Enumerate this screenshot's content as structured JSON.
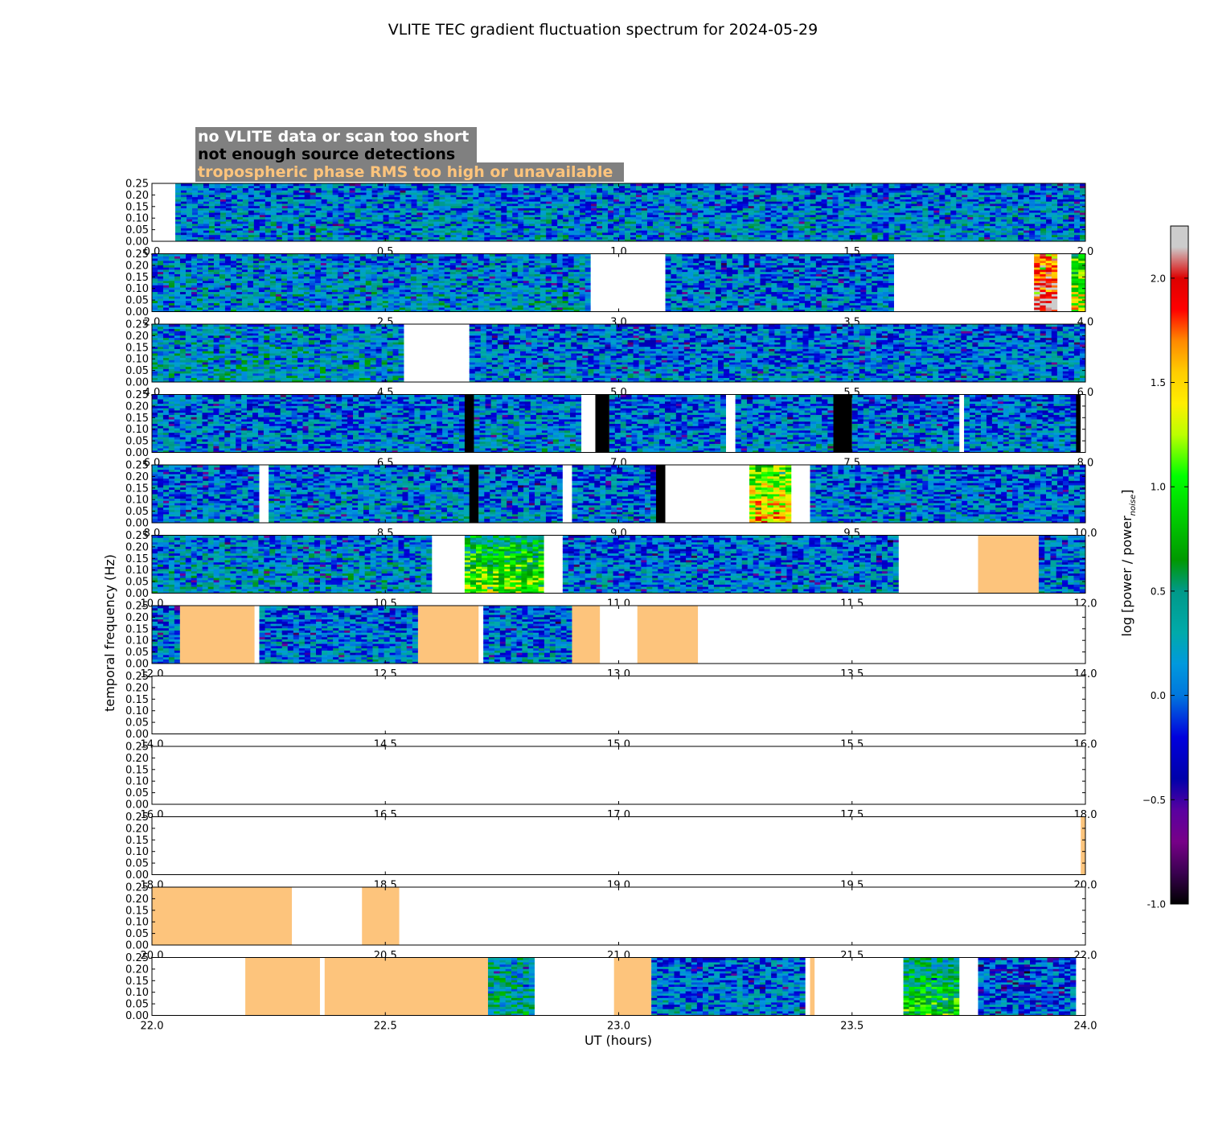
{
  "chart_data": {
    "type": "heatmap",
    "title": "VLITE TEC gradient fluctuation spectrum for 2024-05-29",
    "xlabel": "UT (hours)",
    "ylabel": "temporal frequency (Hz)",
    "ylim": [
      0,
      0.25
    ],
    "y_ticks": [
      "0.00",
      "0.05",
      "0.10",
      "0.15",
      "0.20",
      "0.25"
    ],
    "legend": [
      {
        "text": "no VLITE data or scan too short",
        "color": "#ffffff"
      },
      {
        "text": "not enough source detections",
        "color": "#000000"
      },
      {
        "text": "tropospheric phase RMS too high or unavailable",
        "color": "#fdc47c"
      }
    ],
    "colorbar": {
      "label": "log [power / power",
      "label_sub": "noise",
      "label_end": "]",
      "range": [
        -1.0,
        2.25
      ],
      "ticks": [
        "-1.0",
        "−0.5",
        "0.0",
        "0.5",
        "1.0",
        "1.5",
        "2.0"
      ],
      "tick_values": [
        -1.0,
        -0.5,
        0.0,
        0.5,
        1.0,
        1.5,
        2.0
      ]
    },
    "flag_colors": {
      "nodata": "#ffffff",
      "nodet": "#000000",
      "tropo": "#fdc47c"
    },
    "rows": [
      {
        "xmin": 0,
        "xmax": 2,
        "ticks": [
          "0.0",
          "0.5",
          "1.0",
          "1.5",
          "2.0"
        ],
        "segments": [
          {
            "t0": 0.0,
            "t1": 0.05,
            "kind": "nodata"
          },
          {
            "t0": 0.05,
            "t1": 2.0,
            "kind": "data",
            "level": 0.05
          }
        ]
      },
      {
        "xmin": 2,
        "xmax": 4,
        "ticks": [
          "2.0",
          "2.5",
          "3.0",
          "3.5",
          "4.0"
        ],
        "segments": [
          {
            "t0": 2.0,
            "t1": 2.94,
            "kind": "data",
            "level": 0.1
          },
          {
            "t0": 2.94,
            "t1": 3.1,
            "kind": "nodata"
          },
          {
            "t0": 3.1,
            "t1": 3.59,
            "kind": "data",
            "level": 0.0
          },
          {
            "t0": 3.59,
            "t1": 3.89,
            "kind": "nodata"
          },
          {
            "t0": 3.89,
            "t1": 3.94,
            "kind": "data",
            "level": 1.6
          },
          {
            "t0": 3.94,
            "t1": 3.97,
            "kind": "nodata"
          },
          {
            "t0": 3.97,
            "t1": 4.0,
            "kind": "data",
            "level": 0.8
          }
        ]
      },
      {
        "xmin": 4,
        "xmax": 6,
        "ticks": [
          "4.0",
          "4.5",
          "5.0",
          "5.5",
          "6.0"
        ],
        "segments": [
          {
            "t0": 4.0,
            "t1": 4.54,
            "kind": "data",
            "level": 0.15
          },
          {
            "t0": 4.54,
            "t1": 4.68,
            "kind": "nodata"
          },
          {
            "t0": 4.68,
            "t1": 6.0,
            "kind": "data",
            "level": 0.0
          }
        ]
      },
      {
        "xmin": 6,
        "xmax": 8,
        "ticks": [
          "6.0",
          "6.5",
          "7.0",
          "7.5",
          "8.0"
        ],
        "segments": [
          {
            "t0": 6.0,
            "t1": 6.67,
            "kind": "data",
            "level": 0.0
          },
          {
            "t0": 6.67,
            "t1": 6.69,
            "kind": "nodet"
          },
          {
            "t0": 6.69,
            "t1": 6.92,
            "kind": "data",
            "level": 0.05
          },
          {
            "t0": 6.92,
            "t1": 6.95,
            "kind": "nodata"
          },
          {
            "t0": 6.95,
            "t1": 6.98,
            "kind": "nodet"
          },
          {
            "t0": 6.98,
            "t1": 7.23,
            "kind": "data",
            "level": 0.0
          },
          {
            "t0": 7.23,
            "t1": 7.25,
            "kind": "nodata"
          },
          {
            "t0": 7.25,
            "t1": 7.46,
            "kind": "data",
            "level": 0.0
          },
          {
            "t0": 7.46,
            "t1": 7.5,
            "kind": "nodet"
          },
          {
            "t0": 7.5,
            "t1": 7.73,
            "kind": "data",
            "level": 0.0
          },
          {
            "t0": 7.73,
            "t1": 7.74,
            "kind": "nodata"
          },
          {
            "t0": 7.74,
            "t1": 7.98,
            "kind": "data",
            "level": 0.0
          },
          {
            "t0": 7.98,
            "t1": 7.99,
            "kind": "nodet"
          },
          {
            "t0": 7.99,
            "t1": 8.0,
            "kind": "nodata"
          }
        ]
      },
      {
        "xmin": 8,
        "xmax": 10,
        "ticks": [
          "8.0",
          "8.5",
          "9.0",
          "9.5",
          "10.0"
        ],
        "segments": [
          {
            "t0": 8.0,
            "t1": 8.23,
            "kind": "data",
            "level": 0.0
          },
          {
            "t0": 8.23,
            "t1": 8.25,
            "kind": "nodata"
          },
          {
            "t0": 8.25,
            "t1": 8.68,
            "kind": "data",
            "level": 0.05
          },
          {
            "t0": 8.68,
            "t1": 8.7,
            "kind": "nodet"
          },
          {
            "t0": 8.7,
            "t1": 8.88,
            "kind": "data",
            "level": 0.0
          },
          {
            "t0": 8.88,
            "t1": 8.9,
            "kind": "nodata"
          },
          {
            "t0": 8.9,
            "t1": 9.08,
            "kind": "data",
            "level": 0.0
          },
          {
            "t0": 9.08,
            "t1": 9.1,
            "kind": "nodet"
          },
          {
            "t0": 9.1,
            "t1": 9.28,
            "kind": "nodata"
          },
          {
            "t0": 9.28,
            "t1": 9.37,
            "kind": "data",
            "level": 1.0
          },
          {
            "t0": 9.37,
            "t1": 9.41,
            "kind": "nodata"
          },
          {
            "t0": 9.41,
            "t1": 10.0,
            "kind": "data",
            "level": 0.0
          }
        ]
      },
      {
        "xmin": 10,
        "xmax": 12,
        "ticks": [
          "10.0",
          "10.5",
          "11.0",
          "11.5",
          "12.0"
        ],
        "segments": [
          {
            "t0": 10.0,
            "t1": 10.6,
            "kind": "data",
            "level": 0.1
          },
          {
            "t0": 10.6,
            "t1": 10.67,
            "kind": "nodata"
          },
          {
            "t0": 10.67,
            "t1": 10.84,
            "kind": "data",
            "level": 0.55
          },
          {
            "t0": 10.84,
            "t1": 10.88,
            "kind": "nodata"
          },
          {
            "t0": 10.88,
            "t1": 11.6,
            "kind": "data",
            "level": 0.0
          },
          {
            "t0": 11.6,
            "t1": 11.77,
            "kind": "nodata"
          },
          {
            "t0": 11.77,
            "t1": 11.9,
            "kind": "tropo"
          },
          {
            "t0": 11.9,
            "t1": 12.0,
            "kind": "data",
            "level": 0.0
          }
        ]
      },
      {
        "xmin": 12,
        "xmax": 14,
        "ticks": [
          "12.0",
          "12.5",
          "13.0",
          "13.5",
          "14.0"
        ],
        "segments": [
          {
            "t0": 12.0,
            "t1": 12.06,
            "kind": "data",
            "level": 0.0
          },
          {
            "t0": 12.06,
            "t1": 12.22,
            "kind": "tropo"
          },
          {
            "t0": 12.22,
            "t1": 12.23,
            "kind": "nodata"
          },
          {
            "t0": 12.23,
            "t1": 12.57,
            "kind": "data",
            "level": 0.0
          },
          {
            "t0": 12.57,
            "t1": 12.7,
            "kind": "tropo"
          },
          {
            "t0": 12.7,
            "t1": 12.71,
            "kind": "nodata"
          },
          {
            "t0": 12.71,
            "t1": 12.9,
            "kind": "data",
            "level": 0.0
          },
          {
            "t0": 12.9,
            "t1": 12.96,
            "kind": "tropo"
          },
          {
            "t0": 12.96,
            "t1": 13.04,
            "kind": "nodata"
          },
          {
            "t0": 13.04,
            "t1": 13.17,
            "kind": "tropo"
          },
          {
            "t0": 13.17,
            "t1": 14.0,
            "kind": "nodata"
          }
        ]
      },
      {
        "xmin": 14,
        "xmax": 16,
        "ticks": [
          "14.0",
          "14.5",
          "15.0",
          "15.5",
          "16.0"
        ],
        "segments": [
          {
            "t0": 14.0,
            "t1": 16.0,
            "kind": "nodata"
          }
        ]
      },
      {
        "xmin": 16,
        "xmax": 18,
        "ticks": [
          "16.0",
          "16.5",
          "17.0",
          "17.5",
          "18.0"
        ],
        "segments": [
          {
            "t0": 16.0,
            "t1": 18.0,
            "kind": "nodata"
          }
        ]
      },
      {
        "xmin": 18,
        "xmax": 20,
        "ticks": [
          "18.0",
          "18.5",
          "19.0",
          "19.5",
          "20.0"
        ],
        "segments": [
          {
            "t0": 18.0,
            "t1": 19.99,
            "kind": "nodata"
          },
          {
            "t0": 19.99,
            "t1": 20.0,
            "kind": "tropo"
          }
        ]
      },
      {
        "xmin": 20,
        "xmax": 22,
        "ticks": [
          "20.0",
          "20.5",
          "21.0",
          "21.5",
          "22.0"
        ],
        "segments": [
          {
            "t0": 20.0,
            "t1": 20.3,
            "kind": "tropo"
          },
          {
            "t0": 20.3,
            "t1": 20.45,
            "kind": "nodata"
          },
          {
            "t0": 20.45,
            "t1": 20.53,
            "kind": "tropo"
          },
          {
            "t0": 20.53,
            "t1": 22.0,
            "kind": "nodata"
          }
        ]
      },
      {
        "xmin": 22,
        "xmax": 24,
        "ticks": [
          "22.0",
          "22.5",
          "23.0",
          "23.5",
          "24.0"
        ],
        "segments": [
          {
            "t0": 22.0,
            "t1": 22.2,
            "kind": "nodata"
          },
          {
            "t0": 22.2,
            "t1": 22.36,
            "kind": "tropo"
          },
          {
            "t0": 22.36,
            "t1": 22.37,
            "kind": "nodata"
          },
          {
            "t0": 22.37,
            "t1": 22.72,
            "kind": "tropo"
          },
          {
            "t0": 22.72,
            "t1": 22.82,
            "kind": "data",
            "level": 0.3
          },
          {
            "t0": 22.82,
            "t1": 22.99,
            "kind": "nodata"
          },
          {
            "t0": 22.99,
            "t1": 23.07,
            "kind": "tropo"
          },
          {
            "t0": 23.07,
            "t1": 23.4,
            "kind": "data",
            "level": 0.0
          },
          {
            "t0": 23.4,
            "t1": 23.41,
            "kind": "nodata"
          },
          {
            "t0": 23.41,
            "t1": 23.42,
            "kind": "tropo"
          },
          {
            "t0": 23.42,
            "t1": 23.61,
            "kind": "nodata"
          },
          {
            "t0": 23.61,
            "t1": 23.73,
            "kind": "data",
            "level": 0.35
          },
          {
            "t0": 23.73,
            "t1": 23.77,
            "kind": "nodata"
          },
          {
            "t0": 23.77,
            "t1": 23.98,
            "kind": "data",
            "level": -0.1
          },
          {
            "t0": 23.98,
            "t1": 24.0,
            "kind": "nodata"
          }
        ]
      }
    ]
  }
}
